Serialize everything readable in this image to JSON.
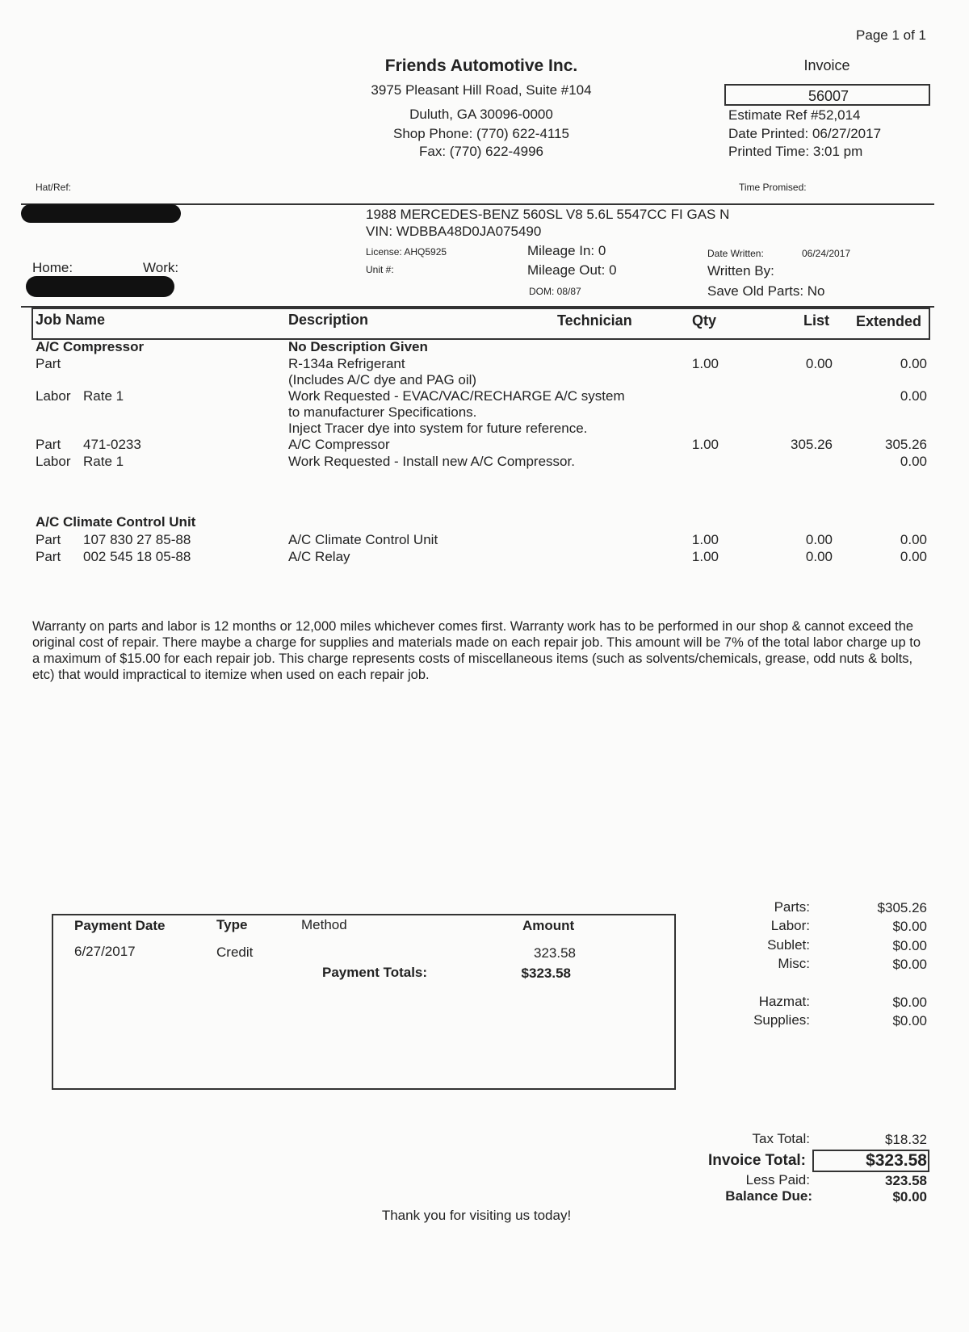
{
  "page": "Page 1 of 1",
  "shop": {
    "name": "Friends Automotive Inc.",
    "address": "3975 Pleasant Hill Road, Suite #104",
    "city": "Duluth, GA  30096-0000",
    "phone": "Shop Phone: (770) 622-4115",
    "fax": "Fax: (770) 622-4996"
  },
  "invoice": {
    "label": "Invoice",
    "number": "56007",
    "estimate_ref": "Estimate Ref #52,014",
    "date_printed": "Date Printed: 06/27/2017",
    "printed_time": "Printed Time:  3:01 pm"
  },
  "labels": {
    "hat_ref": "Hat/Ref:",
    "time_promised": "Time Promised:",
    "home": "Home:",
    "work": "Work:"
  },
  "vehicle": {
    "desc": "1988 MERCEDES-BENZ  560SL  V8 5.6L 5547CC FI GAS N",
    "vin": "VIN: WDBBA48D0JA075490",
    "license": "License: AHQ5925",
    "unit": "Unit #:",
    "mileage_in": "Mileage In: 0",
    "mileage_out": "Mileage Out: 0",
    "dom": "DOM: 08/87",
    "date_written_label": "Date Written:",
    "date_written": "06/24/2017",
    "written_by": "Written By:",
    "save_old_parts": "Save Old Parts: No"
  },
  "table": {
    "headers": [
      "Job Name",
      "Description",
      "Technician",
      "Qty",
      "List",
      "Extended"
    ],
    "rows": [
      {
        "type": "A/C Compressor",
        "num": "",
        "desc": "No Description Given",
        "qty": "",
        "list": "",
        "ext": "",
        "bold": true
      },
      {
        "type": "Part",
        "num": "",
        "desc": "R-134a Refrigerant",
        "qty": "1.00",
        "list": "0.00",
        "ext": "0.00"
      },
      {
        "type": "",
        "num": "",
        "desc": "(Includes A/C dye and PAG oil)",
        "qty": "",
        "list": "",
        "ext": ""
      },
      {
        "type": "Labor",
        "num": "Rate 1",
        "desc": "Work Requested - EVAC/VAC/RECHARGE A/C system",
        "qty": "",
        "list": "",
        "ext": "0.00"
      },
      {
        "type": "",
        "num": "",
        "desc": "to manufacturer Specifications.",
        "qty": "",
        "list": "",
        "ext": ""
      },
      {
        "type": "",
        "num": "",
        "desc": "Inject Tracer dye into system for future reference.",
        "qty": "",
        "list": "",
        "ext": ""
      },
      {
        "type": "Part",
        "num": "471-0233",
        "desc": "A/C Compressor",
        "qty": "1.00",
        "list": "305.26",
        "ext": "305.26"
      },
      {
        "type": "Labor",
        "num": "Rate 1",
        "desc": "Work Requested - Install new A/C Compressor.",
        "qty": "",
        "list": "",
        "ext": "0.00"
      },
      {
        "type": "A/C Climate Control Unit",
        "num": "",
        "desc": "",
        "qty": "",
        "list": "",
        "ext": "",
        "bold": true
      },
      {
        "type": "Part",
        "num": "107 830 27 85-88",
        "desc": "A/C Climate Control Unit",
        "qty": "1.00",
        "list": "0.00",
        "ext": "0.00"
      },
      {
        "type": "Part",
        "num": "002 545 18 05-88",
        "desc": "A/C Relay",
        "qty": "1.00",
        "list": "0.00",
        "ext": "0.00"
      }
    ]
  },
  "warranty": "Warranty on parts and labor is 12 months or 12,000 miles whichever comes first.  Warranty work has to be performed in our shop & cannot exceed the original cost of repair. There maybe a charge for supplies and materials made on each repair job. This amount will be 7% of the total labor charge up to a maximum of $15.00 for each repair job. This charge represents costs of miscellaneous items (such as solvents/chemicals, grease, odd nuts & bolts, etc) that would impractical to itemize when used on each repair job.",
  "payment": {
    "headers": [
      "Payment Date",
      "Type",
      "Method",
      "Amount"
    ],
    "date": "6/27/2017",
    "type": "Credit",
    "amount": "323.58",
    "totals_label": "Payment  Totals:",
    "totals": "$323.58"
  },
  "totals": [
    {
      "label": "Parts:",
      "value": "$305.26"
    },
    {
      "label": "Labor:",
      "value": "$0.00"
    },
    {
      "label": "Sublet:",
      "value": "$0.00"
    },
    {
      "label": "Misc:",
      "value": "$0.00"
    },
    {
      "label": "Hazmat:",
      "value": "$0.00"
    },
    {
      "label": "Supplies:",
      "value": "$0.00"
    }
  ],
  "summary": {
    "tax_label": "Tax Total:",
    "tax": "$18.32",
    "invoice_total_label": "Invoice Total:",
    "invoice_total": "$323.58",
    "less_paid_label": "Less Paid:",
    "less_paid": "323.58",
    "balance_label": "Balance Due:",
    "balance": "$0.00"
  },
  "thanks": "Thank you for visiting us today!"
}
